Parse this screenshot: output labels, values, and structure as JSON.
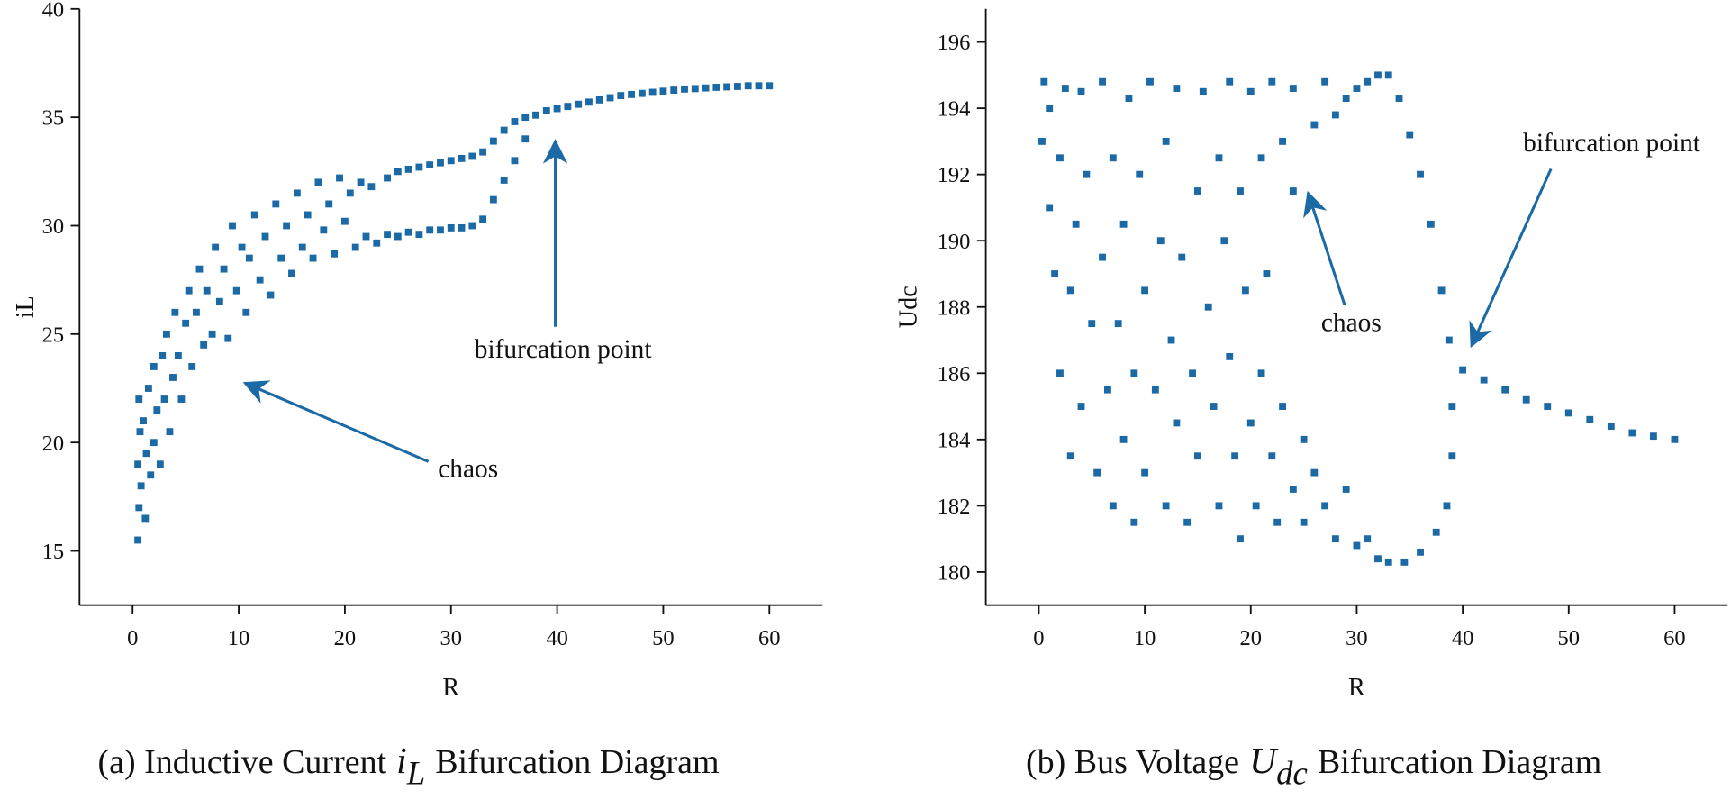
{
  "chart_data": [
    {
      "type": "scatter",
      "x_label": "R",
      "y_label": "iL",
      "color": "#1b6aa5",
      "xlim": [
        -5,
        65
      ],
      "xticks": [
        0,
        10,
        20,
        30,
        40,
        50,
        60
      ],
      "ylim": [
        12.5,
        40
      ],
      "yticks": [
        15,
        20,
        25,
        30,
        35,
        40
      ],
      "annotations": [
        "chaos",
        "bifurcation point"
      ],
      "caption": {
        "text": "(a) Inductive Current",
        "symbol": "i",
        "subscript": "L",
        "tail": "Bifurcation Diagram"
      },
      "x": [
        0.5,
        0.6,
        0.5,
        0.7,
        0.6,
        0.8,
        1,
        1.2,
        1.3,
        1.5,
        1.7,
        2,
        2,
        2.3,
        2.6,
        2.8,
        3,
        3.2,
        3.5,
        3.8,
        4,
        4.3,
        4.6,
        5,
        5.3,
        5.6,
        6,
        6.3,
        6.7,
        7,
        7.5,
        7.8,
        8.2,
        8.6,
        9,
        9.4,
        9.8,
        10.3,
        10.7,
        11,
        11.5,
        12,
        12.5,
        13,
        13.5,
        14,
        14.5,
        15,
        15.5,
        16,
        16.5,
        17,
        17.5,
        18,
        18.5,
        19,
        19.5,
        20,
        20.5,
        21,
        21.5,
        22,
        22.5,
        23,
        24,
        24,
        25,
        25,
        26,
        26,
        27,
        27,
        28,
        28,
        29,
        29,
        30,
        30,
        31,
        31,
        32,
        32,
        33,
        33,
        34,
        34,
        35,
        35,
        36,
        36,
        37,
        37,
        38,
        39,
        40,
        41,
        42,
        43,
        44,
        45,
        46,
        47,
        48,
        49,
        50,
        51,
        52,
        53,
        54,
        55,
        56,
        57,
        58,
        59,
        60
      ],
      "y": [
        15.5,
        17,
        19,
        20.5,
        22,
        18,
        21,
        16.5,
        19.5,
        22.5,
        18.5,
        20,
        23.5,
        21.5,
        19,
        24,
        22,
        25,
        20.5,
        23,
        26,
        24,
        22,
        25.5,
        27,
        23.5,
        26,
        28,
        24.5,
        27,
        25,
        29,
        26.5,
        28,
        24.8,
        30,
        27,
        29,
        26,
        28.5,
        30.5,
        27.5,
        29.5,
        26.8,
        31,
        28.5,
        30,
        27.8,
        31.5,
        29,
        30.5,
        28.5,
        32,
        29.8,
        31,
        28.7,
        32.2,
        30.2,
        31.5,
        29,
        32,
        29.5,
        31.8,
        29.2,
        32.2,
        29.6,
        32.5,
        29.5,
        32.6,
        29.7,
        32.7,
        29.6,
        32.8,
        29.8,
        32.9,
        29.8,
        33,
        29.9,
        33.1,
        29.9,
        33.2,
        30,
        33.4,
        30.3,
        33.9,
        31.2,
        34.4,
        32.1,
        34.8,
        33,
        35,
        34,
        35.1,
        35.3,
        35.4,
        35.5,
        35.6,
        35.7,
        35.8,
        35.9,
        36,
        36.05,
        36.1,
        36.15,
        36.2,
        36.25,
        36.3,
        36.32,
        36.35,
        36.38,
        36.4,
        36.42,
        36.45,
        36.45,
        36.45
      ]
    },
    {
      "type": "scatter",
      "x_label": "R",
      "y_label": "Udc",
      "color": "#1b6aa5",
      "xlim": [
        -5,
        65
      ],
      "xticks": [
        0,
        10,
        20,
        30,
        40,
        50,
        60
      ],
      "ylim": [
        179,
        197
      ],
      "yticks": [
        180,
        182,
        184,
        186,
        188,
        190,
        192,
        194,
        196
      ],
      "annotations": [
        "chaos",
        "bifurcation point"
      ],
      "caption": {
        "text": "(b) Bus Voltage",
        "symbol": "U",
        "subscript": "dc",
        "tail": "Bifurcation Diagram"
      },
      "x": [
        0.3,
        0.5,
        1,
        1,
        1.5,
        2,
        2,
        2.5,
        3,
        3,
        3.5,
        4,
        4,
        4.5,
        5,
        5.5,
        6,
        6,
        6.5,
        7,
        7,
        7.5,
        8,
        8,
        8.5,
        9,
        9,
        9.5,
        10,
        10,
        10.5,
        11,
        11.5,
        12,
        12,
        12.5,
        13,
        13,
        13.5,
        14,
        14.5,
        15,
        15,
        15.5,
        16,
        16.5,
        17,
        17,
        17.5,
        18,
        18,
        18.5,
        19,
        19,
        19.5,
        20,
        20,
        20.5,
        21,
        21,
        21.5,
        22,
        22,
        22.5,
        23,
        23,
        24,
        24,
        24,
        25,
        25,
        26,
        26,
        27,
        27,
        28,
        28,
        29,
        29,
        30,
        30,
        31,
        31,
        32,
        32,
        33,
        33,
        34,
        35,
        36,
        37,
        38,
        38.7,
        39,
        39,
        38.5,
        37.5,
        36,
        34.5,
        40,
        42,
        44,
        46,
        48,
        50,
        52,
        54,
        56,
        58,
        60
      ],
      "y": [
        193,
        194.8,
        191,
        194,
        189,
        192.5,
        186,
        194.6,
        188.5,
        183.5,
        190.5,
        185,
        194.5,
        192,
        187.5,
        183,
        189.5,
        194.8,
        185.5,
        192.5,
        182,
        187.5,
        190.5,
        184,
        194.3,
        186,
        181.5,
        192,
        188.5,
        183,
        194.8,
        185.5,
        190,
        182,
        193,
        187,
        184.5,
        194.6,
        189.5,
        181.5,
        186,
        191.5,
        183.5,
        194.5,
        188,
        185,
        182,
        192.5,
        190,
        186.5,
        194.8,
        183.5,
        181,
        191.5,
        188.5,
        184.5,
        194.5,
        182,
        186,
        192.5,
        189,
        183.5,
        194.8,
        181.5,
        185,
        193,
        182.5,
        191.5,
        194.6,
        184,
        181.5,
        193.5,
        183,
        182,
        194.8,
        181,
        193.8,
        182.5,
        194.3,
        180.8,
        194.6,
        181,
        194.8,
        180.4,
        195,
        180.3,
        195,
        194.3,
        193.2,
        192,
        190.5,
        188.5,
        187,
        185,
        183.5,
        182,
        181.2,
        180.6,
        180.3,
        186.1,
        185.8,
        185.5,
        185.2,
        185,
        184.8,
        184.6,
        184.4,
        184.2,
        184.1,
        184
      ]
    }
  ]
}
